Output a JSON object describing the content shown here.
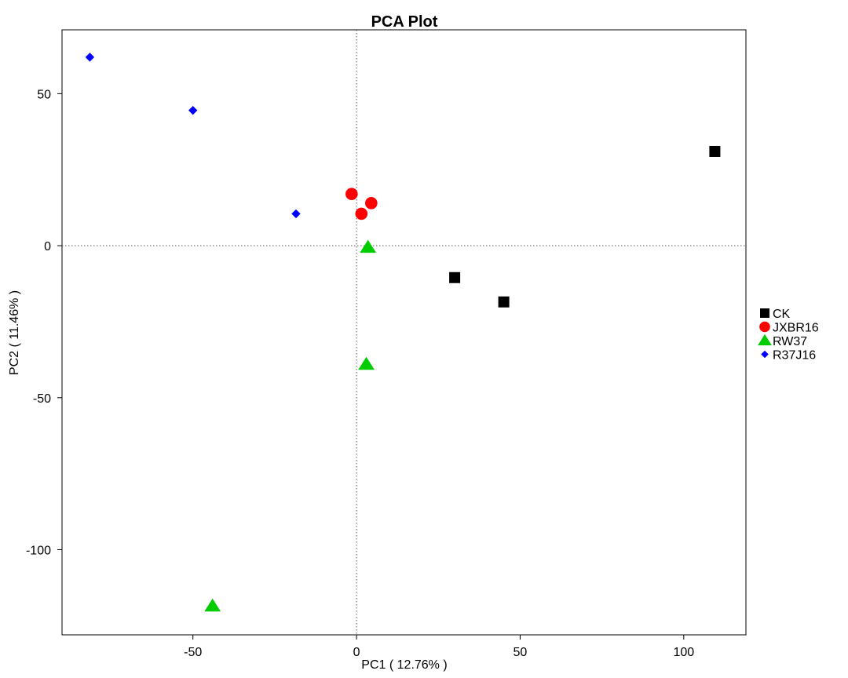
{
  "chart_data": {
    "type": "scatter",
    "title": "PCA Plot",
    "xlabel": "PC1 ( 12.76% )",
    "ylabel": "PC2 ( 11.46% )",
    "xlim": [
      -90,
      119
    ],
    "ylim": [
      -128,
      71
    ],
    "xticks": [
      -50,
      0,
      50,
      100
    ],
    "yticks": [
      50,
      0,
      -50,
      -100
    ],
    "reference_lines": {
      "x": 0,
      "y": 0,
      "style": "dotted"
    },
    "grid": false,
    "legend_position": "right",
    "series": [
      {
        "name": "CK",
        "marker": "square",
        "color": "#000000",
        "points": [
          [
            109.5,
            31
          ],
          [
            30,
            -10.5
          ],
          [
            45,
            -18.5
          ]
        ]
      },
      {
        "name": "JXBR16",
        "marker": "circle",
        "color": "#ff0000",
        "points": [
          [
            -1.5,
            17
          ],
          [
            4.5,
            14
          ],
          [
            1.5,
            10.5
          ]
        ]
      },
      {
        "name": "RW37",
        "marker": "triangle",
        "color": "#00cc00",
        "points": [
          [
            3.5,
            -0.5
          ],
          [
            3,
            -39
          ],
          [
            -44,
            -118.5
          ]
        ]
      },
      {
        "name": "R37J16",
        "marker": "diamond",
        "color": "#0000ff",
        "points": [
          [
            -81.5,
            62
          ],
          [
            -50,
            44.5
          ],
          [
            -18.5,
            10.5
          ]
        ]
      }
    ]
  }
}
